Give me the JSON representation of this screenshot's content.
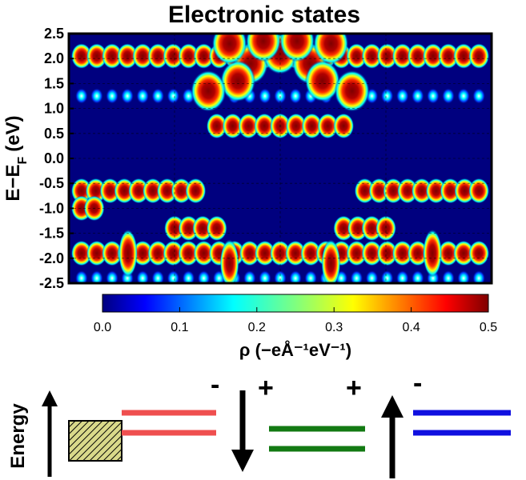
{
  "chart_data": {
    "type": "heatmap",
    "title": "Electronic states",
    "ylabel": "E−E",
    "ylabel_subscript": "F",
    "ylabel_unit": "(eV)",
    "ylim": [
      -2.5,
      2.5
    ],
    "y_ticks": [
      "2.5",
      "2.0",
      "1.5",
      "1.0",
      "0.5",
      "0.0",
      "-0.5",
      "-1.0",
      "-1.5",
      "-2.0",
      "-2.5"
    ],
    "y_tick_values": [
      2.5,
      2.0,
      1.5,
      1.0,
      0.5,
      0.0,
      -0.5,
      -1.0,
      -1.5,
      -2.0,
      -2.5
    ],
    "colorbar": {
      "min": 0.0,
      "max": 0.5,
      "ticks": [
        "0.0",
        "0.1",
        "0.2",
        "0.3",
        "0.4",
        "0.5"
      ],
      "label": "ρ (−eÅ⁻¹eV⁻¹)",
      "colormap": "jet"
    },
    "states": [
      {
        "energy": 2.05,
        "x_start": 0.03,
        "x_end": 0.97,
        "intensity": 0.45
      },
      {
        "energy": 1.25,
        "x_start": 0.03,
        "x_end": 0.97,
        "intensity": 0.2
      },
      {
        "energy": 0.65,
        "x_start": 0.35,
        "x_end": 0.65,
        "intensity": 0.5
      },
      {
        "energy": -0.65,
        "x_start": 0.03,
        "x_end": 0.3,
        "intensity": 0.5
      },
      {
        "energy": -0.65,
        "x_start": 0.7,
        "x_end": 0.97,
        "intensity": 0.5
      },
      {
        "energy": -1.0,
        "x_start": 0.03,
        "x_end": 0.06,
        "intensity": 0.5
      },
      {
        "energy": -1.4,
        "x_start": 0.25,
        "x_end": 0.35,
        "intensity": 0.5
      },
      {
        "energy": -1.4,
        "x_start": 0.65,
        "x_end": 0.75,
        "intensity": 0.5
      },
      {
        "energy": -1.9,
        "x_start": 0.03,
        "x_end": 0.97,
        "intensity": 0.5
      },
      {
        "energy": -2.4,
        "x_start": 0.03,
        "x_end": 0.97,
        "intensity": 0.3
      }
    ]
  },
  "diagram": {
    "energy_label": "Energy",
    "signs": [
      "-",
      "+",
      "+",
      "-"
    ],
    "colors": {
      "red_levels": "#ef4f4f",
      "green_levels": "#137a13",
      "blue_levels": "#1010e0",
      "box_fill": "#d9d98a"
    }
  }
}
